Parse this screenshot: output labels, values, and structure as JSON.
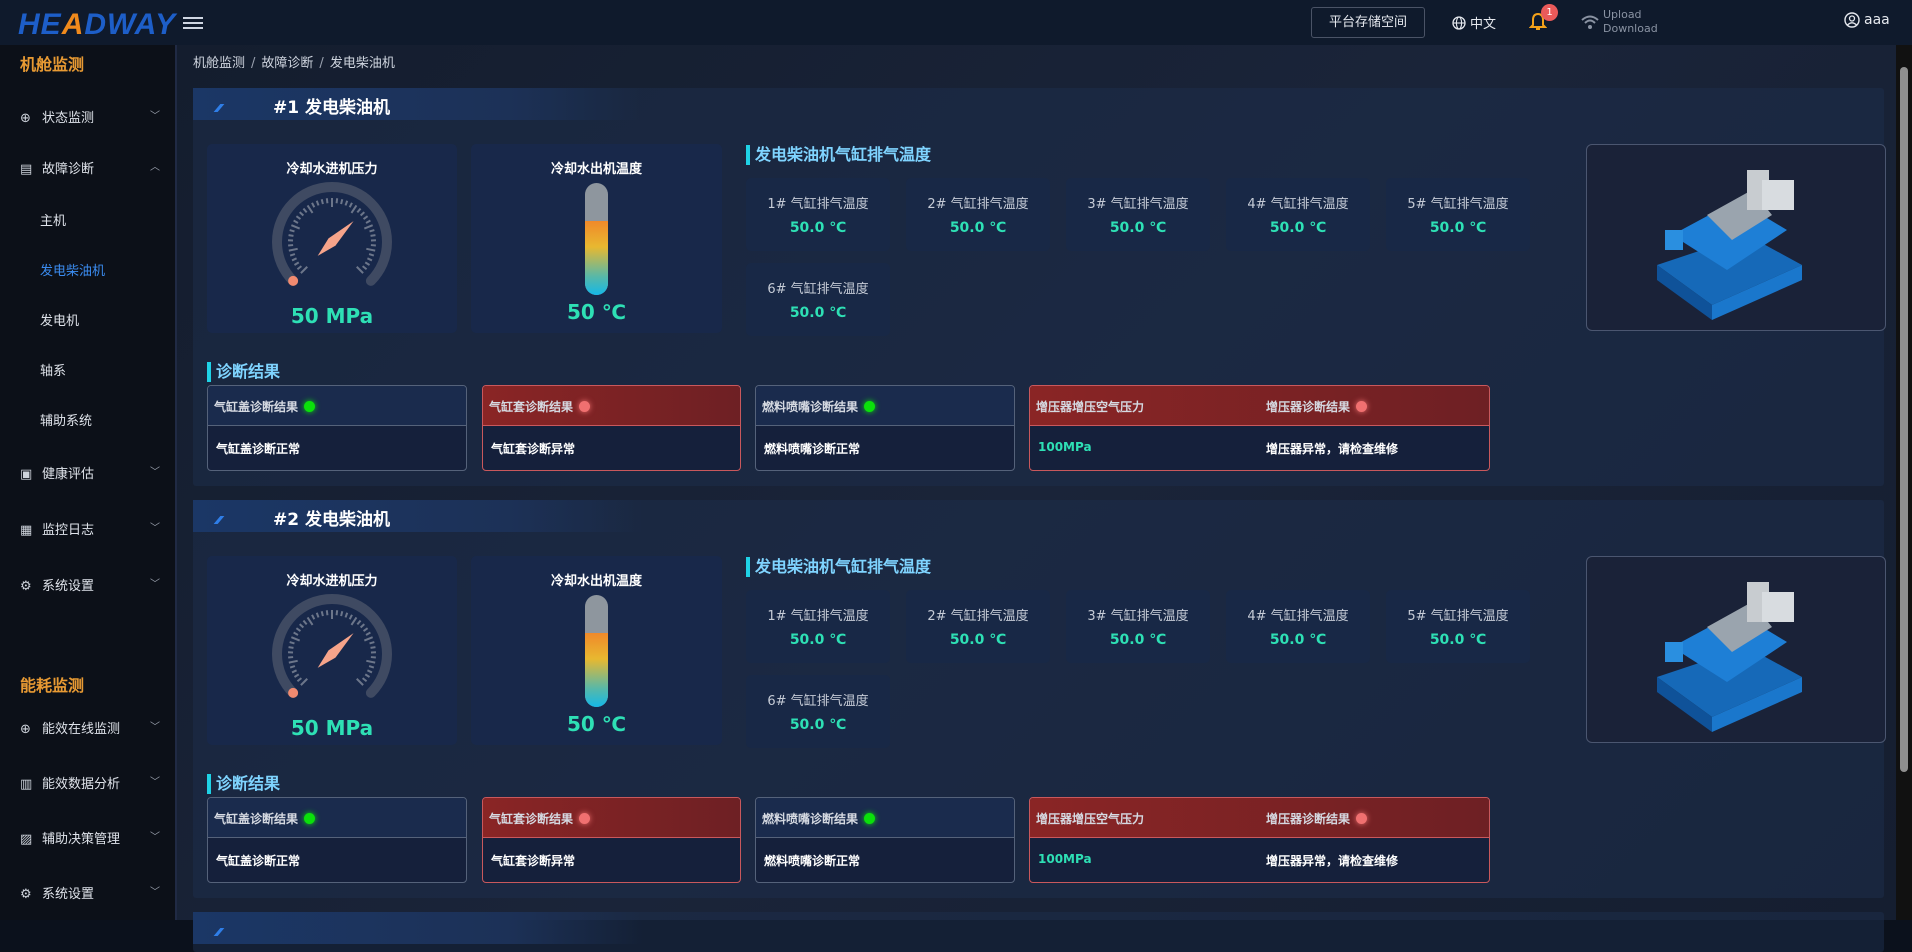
{
  "header": {
    "logo": "HEADWAY",
    "storage_button": "平台存储空间",
    "language": "中文",
    "notification_count": "1",
    "upload": "Upload",
    "download": "Download",
    "user": "aaa"
  },
  "sidebar": {
    "section1": "机舱监测",
    "items1": [
      {
        "label": "状态监测",
        "icon": "crosshair-icon",
        "expanded": false
      },
      {
        "label": "故障诊断",
        "icon": "diagnosis-icon",
        "expanded": true,
        "children": [
          "主机",
          "发电柴油机",
          "发电机",
          "轴系",
          "辅助系统"
        ],
        "active": "发电柴油机"
      },
      {
        "label": "健康评估",
        "icon": "clipboard-icon",
        "expanded": false
      },
      {
        "label": "监控日志",
        "icon": "log-icon",
        "expanded": false
      },
      {
        "label": "系统设置",
        "icon": "gear-icon",
        "expanded": false
      }
    ],
    "section2": "能耗监测",
    "items2": [
      {
        "label": "能效在线监测",
        "icon": "crosshair-icon"
      },
      {
        "label": "能效数据分析",
        "icon": "chart-icon"
      },
      {
        "label": "辅助决策管理",
        "icon": "decision-icon"
      },
      {
        "label": "系统设置",
        "icon": "gear-icon"
      }
    ]
  },
  "breadcrumb": [
    "机舱监测",
    "故障诊断",
    "发电柴油机"
  ],
  "colors": {
    "accent": "#2ee0b5",
    "active_nav": "#3b8cf0",
    "section": "#e89a33",
    "alarm": "#8a2525",
    "ok_dot": "#0be00b",
    "err_dot": "#f07070"
  },
  "panels": [
    {
      "title": "#1 发电柴油机",
      "gauge": {
        "label": "冷却水进机压力",
        "value": "50 MPa",
        "needle_fraction": 0.67
      },
      "thermo": {
        "label": "冷却水出机温度",
        "value": "50 ℃",
        "fill_fraction": 0.66
      },
      "cyl_title": "发电柴油机气缸排气温度",
      "cylinders": [
        {
          "label": "1# 气缸排气温度",
          "value": "50.0 ℃"
        },
        {
          "label": "2# 气缸排气温度",
          "value": "50.0 ℃"
        },
        {
          "label": "3# 气缸排气温度",
          "value": "50.0 ℃"
        },
        {
          "label": "4# 气缸排气温度",
          "value": "50.0 ℃"
        },
        {
          "label": "5# 气缸排气温度",
          "value": "50.0 ℃"
        },
        {
          "label": "6# 气缸排气温度",
          "value": "50.0 ℃"
        }
      ],
      "diag_title": "诊断结果",
      "diag": [
        {
          "title": "气缸盖诊断结果",
          "status": "ok",
          "result": "气缸盖诊断正常"
        },
        {
          "title": "气缸套诊断结果",
          "status": "err",
          "result": "气缸套诊断异常"
        },
        {
          "title": "燃料喷嘴诊断结果",
          "status": "ok",
          "result": "燃料喷嘴诊断正常"
        }
      ],
      "turbo": {
        "pressure_label": "增压器增压空气压力",
        "pressure_value": "100MPa",
        "diag_label": "增压器诊断结果",
        "status": "err",
        "result": "增压器异常，请检查维修"
      }
    },
    {
      "title": "#2 发电柴油机",
      "gauge": {
        "label": "冷却水进机压力",
        "value": "50 MPa",
        "needle_fraction": 0.67
      },
      "thermo": {
        "label": "冷却水出机温度",
        "value": "50 ℃",
        "fill_fraction": 0.66
      },
      "cyl_title": "发电柴油机气缸排气温度",
      "cylinders": [
        {
          "label": "1# 气缸排气温度",
          "value": "50.0 ℃"
        },
        {
          "label": "2# 气缸排气温度",
          "value": "50.0 ℃"
        },
        {
          "label": "3# 气缸排气温度",
          "value": "50.0 ℃"
        },
        {
          "label": "4# 气缸排气温度",
          "value": "50.0 ℃"
        },
        {
          "label": "5# 气缸排气温度",
          "value": "50.0 ℃"
        },
        {
          "label": "6# 气缸排气温度",
          "value": "50.0 ℃"
        }
      ],
      "diag_title": "诊断结果",
      "diag": [
        {
          "title": "气缸盖诊断结果",
          "status": "ok",
          "result": "气缸盖诊断正常"
        },
        {
          "title": "气缸套诊断结果",
          "status": "err",
          "result": "气缸套诊断异常"
        },
        {
          "title": "燃料喷嘴诊断结果",
          "status": "ok",
          "result": "燃料喷嘴诊断正常"
        }
      ],
      "turbo": {
        "pressure_label": "增压器增压空气压力",
        "pressure_value": "100MPa",
        "diag_label": "增压器诊断结果",
        "status": "err",
        "result": "增压器异常，请检查维修"
      }
    }
  ]
}
